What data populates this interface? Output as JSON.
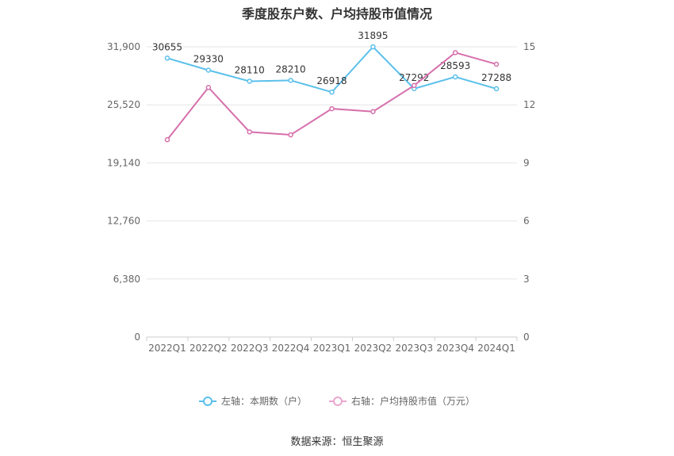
{
  "title": "季度股东户数、户均持股市值情况",
  "source": "数据来源：恒生聚源",
  "chart_data": {
    "type": "line",
    "categories": [
      "2022Q1",
      "2022Q2",
      "2022Q3",
      "2022Q4",
      "2023Q1",
      "2023Q2",
      "2023Q3",
      "2023Q4",
      "2024Q1"
    ],
    "left_axis": {
      "ticks": [
        "0",
        "6,380",
        "12,760",
        "19,140",
        "25,520",
        "31,900"
      ],
      "ylim": [
        0,
        31900
      ]
    },
    "right_axis": {
      "ticks": [
        "0",
        "3",
        "6",
        "9",
        "12",
        "15"
      ],
      "ylim": [
        0,
        15
      ]
    },
    "series": [
      {
        "name": "左轴：本期数（户）",
        "axis": "left",
        "color": "#5bc0eb",
        "values": [
          30655,
          29330,
          28110,
          28210,
          26918,
          31895,
          27292,
          28593,
          27288
        ],
        "labels": [
          "30655",
          "29330",
          "28110",
          "28210",
          "26918",
          "31895",
          "27292",
          "28593",
          "27288"
        ]
      },
      {
        "name": "右轴：户均持股市值（万元）",
        "axis": "right",
        "color": "#d670ac",
        "values": [
          10.2,
          12.9,
          10.6,
          10.45,
          11.8,
          11.65,
          13.0,
          14.7,
          14.1
        ]
      }
    ],
    "grid": true,
    "legend_position": "bottom"
  }
}
